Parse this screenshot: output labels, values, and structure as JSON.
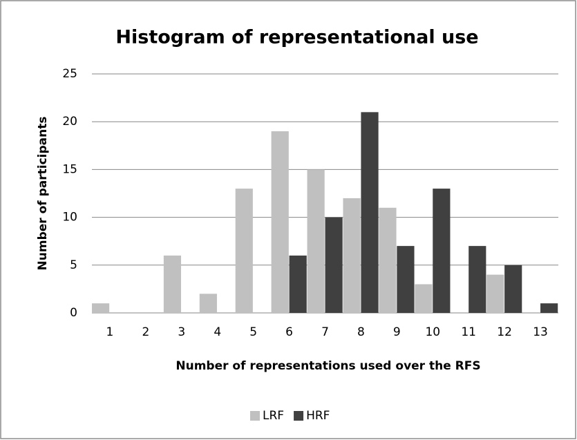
{
  "chart_data": {
    "type": "bar",
    "title": "Histogram of representational use",
    "x_label": "Number of representations used over the RFS",
    "y_label": "Number of participants",
    "categories": [
      "1",
      "2",
      "3",
      "4",
      "5",
      "6",
      "7",
      "8",
      "9",
      "10",
      "11",
      "12",
      "13"
    ],
    "series": [
      {
        "name": "LRF",
        "color": "#c0c0c0",
        "values": [
          1,
          0,
          6,
          2,
          13,
          19,
          15,
          12,
          11,
          3,
          0,
          4,
          0
        ]
      },
      {
        "name": "HRF",
        "color": "#404040",
        "values": [
          0,
          0,
          0,
          0,
          0,
          6,
          10,
          21,
          7,
          13,
          7,
          5,
          1
        ]
      }
    ],
    "ylim": [
      0,
      25
    ],
    "yticks": [
      0,
      5,
      10,
      15,
      20,
      25
    ],
    "grid": true,
    "legend": "bottom"
  }
}
